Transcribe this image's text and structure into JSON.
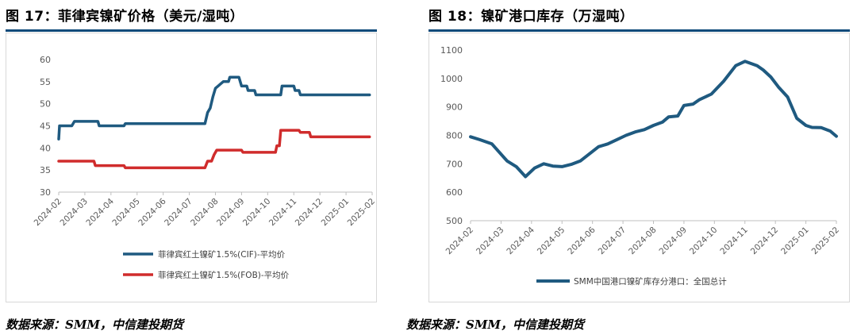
{
  "charts": [
    {
      "title": "图 17：菲律宾镍矿价格（美元/湿吨）",
      "source": "数据来源：SMM，中信建投期货"
    },
    {
      "title": "图 18：镍矿港口库存（万湿吨）",
      "source": "数据来源：SMM，中信建投期货"
    }
  ],
  "chart_data": [
    {
      "type": "line",
      "title": "图 17：菲律宾镍矿价格（美元/湿吨）",
      "ylim": [
        30,
        60
      ],
      "yticks": [
        30,
        35,
        40,
        45,
        50,
        55,
        60
      ],
      "xticks": [
        "2024-02",
        "2024-03",
        "2024-04",
        "2024-05",
        "2024-06",
        "2024-07",
        "2024-08",
        "2024-09",
        "2024-10",
        "2024-11",
        "2024-12",
        "2025-01",
        "2025-02"
      ],
      "grid": false,
      "legend_position": "bottom",
      "series": [
        {
          "name": "菲律宾红土镍矿1.5%(CIF)-平均价",
          "color": "#1f5a80",
          "t": [
            0,
            0.03,
            0.5,
            0.6,
            1.5,
            1.55,
            2.5,
            2.55,
            5.6,
            5.7,
            5.8,
            5.9,
            6.0,
            6.1,
            6.2,
            6.3,
            6.5,
            6.55,
            6.9,
            7.0,
            7.2,
            7.25,
            7.5,
            7.55,
            8.5,
            8.55,
            9.0,
            9.05,
            9.2,
            9.25,
            11.9
          ],
          "values": [
            42,
            45,
            45,
            46,
            46,
            45,
            45,
            45.5,
            45.5,
            48,
            49,
            51.5,
            53.5,
            54,
            54.5,
            55,
            55,
            56,
            56,
            54,
            54,
            53,
            53,
            52,
            52,
            54,
            54,
            53,
            53,
            52,
            52
          ]
        },
        {
          "name": "菲律宾红土镍矿1.5%(FOB)-平均价",
          "color": "#d02c2c",
          "t": [
            0,
            1.35,
            1.4,
            2.5,
            2.55,
            5.6,
            5.7,
            5.85,
            5.95,
            6.05,
            6.15,
            7.0,
            7.05,
            8.3,
            8.35,
            8.45,
            8.5,
            9.2,
            9.25,
            9.6,
            9.65,
            11.9
          ],
          "values": [
            37,
            37,
            36,
            36,
            35.5,
            35.5,
            37,
            37,
            38.5,
            39.5,
            39.5,
            39.5,
            39,
            39,
            40.5,
            40.5,
            44,
            44,
            43.5,
            43.5,
            42.5,
            42.5
          ]
        }
      ]
    },
    {
      "type": "line",
      "title": "图 18：镍矿港口库存（万湿吨）",
      "ylim": [
        500,
        1100
      ],
      "yticks": [
        500,
        600,
        700,
        800,
        900,
        1000,
        1100
      ],
      "xticks": [
        "2024-02",
        "2024-03",
        "2024-04",
        "2024-05",
        "2024-06",
        "2024-07",
        "2024-08",
        "2024-09",
        "2024-10",
        "2024-11",
        "2024-12",
        "2025-01",
        "2025-02"
      ],
      "grid": false,
      "legend_position": "bottom",
      "series": [
        {
          "name": "SMM中国港口镍矿库存分港口：全国总计",
          "color": "#1f5a80",
          "t": [
            0,
            0.3,
            0.7,
            1.2,
            1.5,
            1.8,
            2.1,
            2.4,
            2.7,
            3.0,
            3.3,
            3.6,
            3.9,
            4.2,
            4.5,
            4.8,
            5.1,
            5.4,
            5.7,
            6.0,
            6.3,
            6.5,
            6.8,
            7.0,
            7.3,
            7.5,
            7.9,
            8.3,
            8.7,
            9.0,
            9.4,
            9.6,
            9.85,
            10.1,
            10.4,
            10.7,
            11.0,
            11.2,
            11.5,
            11.8,
            12.0
          ],
          "values": [
            795,
            785,
            770,
            710,
            690,
            655,
            685,
            700,
            692,
            690,
            698,
            710,
            735,
            760,
            770,
            785,
            800,
            812,
            820,
            835,
            847,
            865,
            868,
            905,
            910,
            925,
            945,
            990,
            1045,
            1060,
            1045,
            1030,
            1005,
            970,
            935,
            860,
            835,
            828,
            827,
            815,
            797
          ]
        }
      ]
    }
  ]
}
